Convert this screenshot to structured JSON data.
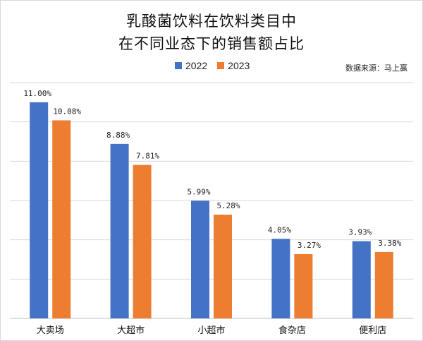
{
  "title_line1": "乳酸菌饮料在饮料类目中",
  "title_line2": "在不同业态下的销售额占比",
  "source_note": "数据来源：马上赢",
  "colors": {
    "2022": "#4472c4",
    "2023": "#ed7d31",
    "grid": "#d9d9d9",
    "axis": "#bfbfbf"
  },
  "chart_data": {
    "type": "bar",
    "title": "乳酸菌饮料在饮料类目中在不同业态下的销售额占比",
    "categories": [
      "大卖场",
      "大超市",
      "小超市",
      "食杂店",
      "便利店"
    ],
    "series": [
      {
        "name": "2022",
        "values": [
          11.0,
          8.88,
          5.99,
          4.05,
          3.93
        ],
        "labels": [
          "11.00%",
          "8.88%",
          "5.99%",
          "4.05%",
          "3.93%"
        ]
      },
      {
        "name": "2023",
        "values": [
          10.08,
          7.81,
          5.28,
          3.27,
          3.38
        ],
        "labels": [
          "10.08%",
          "7.81%",
          "5.28%",
          "3.27%",
          "3.38%"
        ]
      }
    ],
    "ylim": [
      0,
      12
    ],
    "grid": true,
    "legend": "top-center"
  }
}
